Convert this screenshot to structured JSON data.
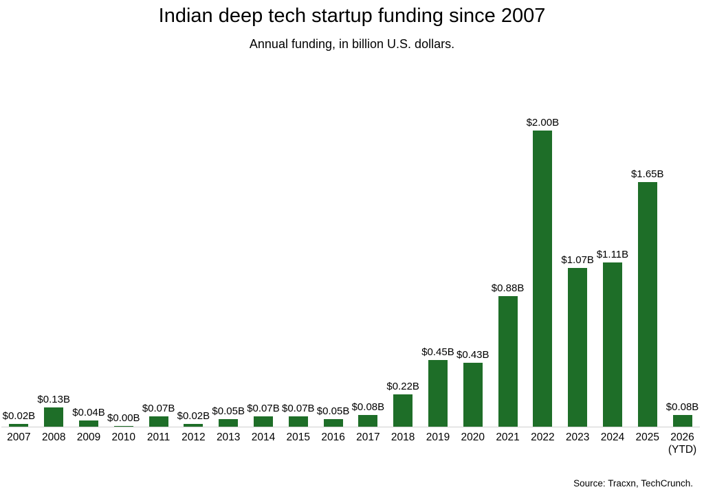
{
  "header": {
    "title": "Indian deep tech startup funding since 2007",
    "subtitle": "Annual funding, in billion U.S. dollars."
  },
  "footer": {
    "source": "Source: Tracxn, TechCrunch."
  },
  "chart_data": {
    "type": "bar",
    "title": "Indian deep tech startup funding since 2007",
    "subtitle": "Annual funding, in billion U.S. dollars.",
    "xlabel": "",
    "ylabel": "",
    "categories": [
      "2007",
      "2008",
      "2009",
      "2010",
      "2011",
      "2012",
      "2013",
      "2014",
      "2015",
      "2016",
      "2017",
      "2018",
      "2019",
      "2020",
      "2021",
      "2022",
      "2023",
      "2024",
      "2025",
      "2026\n(YTD)"
    ],
    "values": [
      0.02,
      0.13,
      0.04,
      0.0,
      0.07,
      0.02,
      0.05,
      0.07,
      0.07,
      0.05,
      0.08,
      0.22,
      0.45,
      0.43,
      0.88,
      2.0,
      1.07,
      1.11,
      1.65,
      0.08
    ],
    "value_labels": [
      "$0.02B",
      "$0.13B",
      "$0.04B",
      "$0.00B",
      "$0.07B",
      "$0.02B",
      "$0.05B",
      "$0.07B",
      "$0.07B",
      "$0.05B",
      "$0.08B",
      "$0.22B",
      "$0.45B",
      "$0.43B",
      "$0.88B",
      "$2.00B",
      "$1.07B",
      "$1.11B",
      "$1.65B",
      "$0.08B"
    ],
    "bar_color": "#1e6e28",
    "axis_line_color": "#cfcfcf",
    "ylim": [
      0,
      2.42
    ],
    "grid": false,
    "legend": false,
    "source": "Source: Tracxn, TechCrunch."
  }
}
